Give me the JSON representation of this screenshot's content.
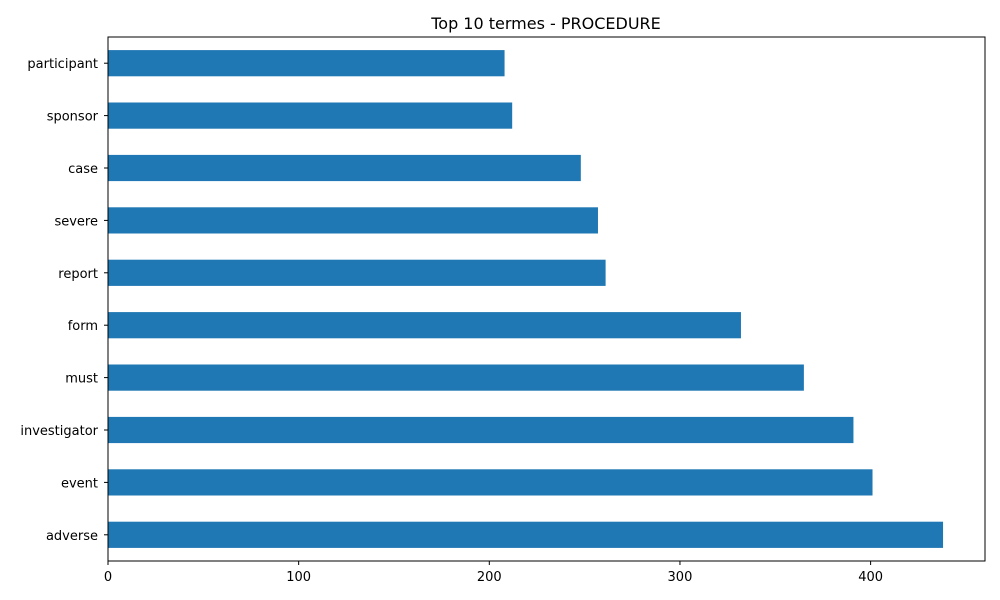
{
  "chart_data": {
    "type": "bar",
    "orientation": "horizontal",
    "title": "Top 10 termes - PROCEDURE",
    "xlabel": "",
    "ylabel": "",
    "categories": [
      "adverse",
      "event",
      "investigator",
      "must",
      "form",
      "report",
      "severe",
      "case",
      "sponsor",
      "participant"
    ],
    "values": [
      438,
      401,
      391,
      365,
      332,
      261,
      257,
      248,
      212,
      208
    ],
    "xlim": [
      0,
      460
    ],
    "x_ticks": [
      0,
      100,
      200,
      300,
      400
    ],
    "grid": false,
    "bar_color": "#1f77b4"
  }
}
